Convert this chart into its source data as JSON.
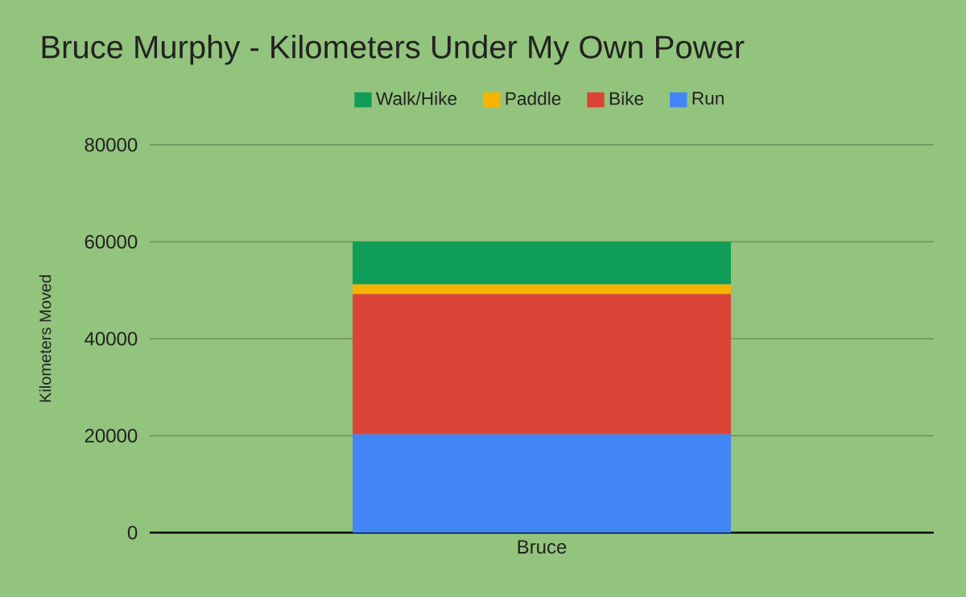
{
  "chart_data": {
    "type": "bar",
    "title": "Bruce Murphy - Kilometers Under My Own Power",
    "ylabel": "Kilometers Moved",
    "categories": [
      "Bruce"
    ],
    "stacked": true,
    "ylim": [
      0,
      80000
    ],
    "yticks": [
      0,
      20000,
      40000,
      60000,
      80000
    ],
    "grid": "y",
    "legend": "top",
    "series": [
      {
        "name": "Run",
        "color": "#4285f4",
        "values": [
          20300
        ]
      },
      {
        "name": "Bike",
        "color": "#db4437",
        "values": [
          28900
        ]
      },
      {
        "name": "Paddle",
        "color": "#f4b400",
        "values": [
          2000
        ]
      },
      {
        "name": "Walk/Hike",
        "color": "#0f9d58",
        "values": [
          8800
        ]
      }
    ]
  }
}
